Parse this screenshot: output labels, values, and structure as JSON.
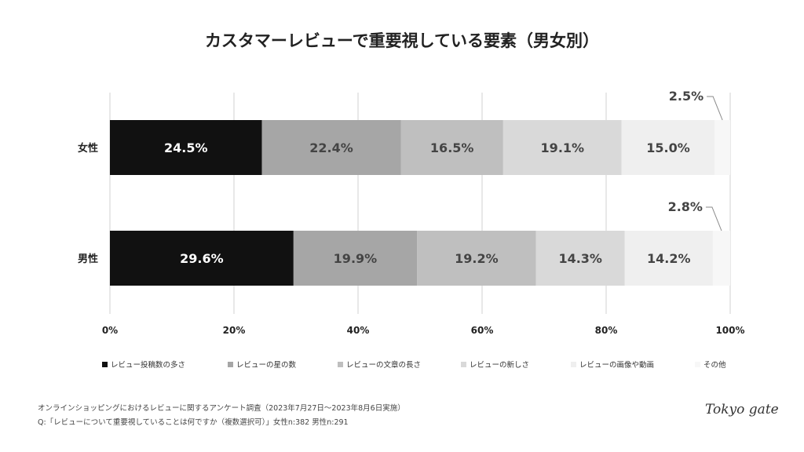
{
  "chart_data": {
    "type": "bar",
    "orientation": "horizontal",
    "stacked": true,
    "title": "カスタマーレビューで重要視している要素（男女別）",
    "categories": [
      "女性",
      "男性"
    ],
    "series": [
      {
        "name": "レビュー投稿数の多さ",
        "color": "#111111",
        "values": [
          24.5,
          29.6
        ]
      },
      {
        "name": "レビューの星の数",
        "color": "#a6a6a6",
        "values": [
          22.4,
          19.9
        ]
      },
      {
        "name": "レビューの文章の長さ",
        "color": "#bfbfbf",
        "values": [
          16.5,
          19.2
        ]
      },
      {
        "name": "レビューの新しさ",
        "color": "#d9d9d9",
        "values": [
          19.1,
          14.3
        ]
      },
      {
        "name": "レビューの画像や動画",
        "color": "#efefef",
        "values": [
          15.0,
          14.2
        ]
      },
      {
        "name": "その他",
        "color": "#f7f7f7",
        "values": [
          2.5,
          2.8
        ]
      }
    ],
    "xlim": [
      0,
      100
    ],
    "xticks": [
      "0%",
      "20%",
      "40%",
      "60%",
      "80%",
      "100%"
    ],
    "grid": true,
    "legend": "bottom"
  },
  "footer": {
    "line1": "オンラインショッピングにおけるレビューに関するアンケート調査（2023年7月27日〜2023年8月6日実施）",
    "line2": "Q:「レビューについて重要視していることは何ですか（複数選択可）」女性n:382 男性n:291"
  },
  "logo": "Tokyo gate"
}
